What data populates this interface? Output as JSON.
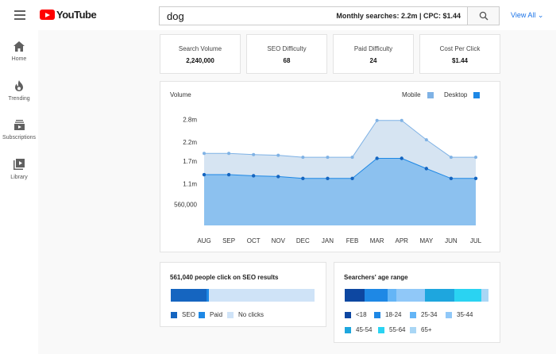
{
  "app": {
    "brand": "YouTube"
  },
  "search": {
    "query": "dog",
    "stats_prefix": "Monthly searches: 2.2m | CPC: $1.44",
    "view_all": "View All"
  },
  "sidebar": {
    "items": [
      {
        "label": "Home",
        "icon": "home-icon"
      },
      {
        "label": "Trending",
        "icon": "flame-icon"
      },
      {
        "label": "Subscriptions",
        "icon": "subscriptions-icon"
      },
      {
        "label": "Library",
        "icon": "library-icon"
      }
    ]
  },
  "stats": [
    {
      "label": "Search Volume",
      "value": "2,240,000"
    },
    {
      "label": "SEO Difficulty",
      "value": "68"
    },
    {
      "label": "Paid Difficulty",
      "value": "24"
    },
    {
      "label": "Cost Per Click",
      "value": "$1.44"
    }
  ],
  "colors": {
    "mobile": "#7fb2e5",
    "desktop": "#1e88e5",
    "mobile_area": "#d6e4f2",
    "desktop_area": "#8cc1ef"
  },
  "chart_data": {
    "type": "area",
    "title": "Volume",
    "categories": [
      "AUG",
      "SEP",
      "OCT",
      "NOV",
      "DEC",
      "JAN",
      "FEB",
      "MAR",
      "APR",
      "MAY",
      "JUN",
      "JUL"
    ],
    "y_ticks": [
      "2.8m",
      "2.2m",
      "1.7m",
      "1.1m",
      "560,000"
    ],
    "y_tick_values": [
      2800000,
      2200000,
      1700000,
      1100000,
      560000
    ],
    "ylim": [
      0,
      3100000
    ],
    "stacked": true,
    "series": [
      {
        "name": "Desktop",
        "values": [
          1340000,
          1340000,
          1310000,
          1290000,
          1240000,
          1240000,
          1240000,
          1770000,
          1770000,
          1500000,
          1240000,
          1240000
        ]
      },
      {
        "name": "Mobile",
        "values": [
          560000,
          560000,
          560000,
          560000,
          560000,
          560000,
          560000,
          1000000,
          1000000,
          760000,
          560000,
          560000
        ]
      }
    ],
    "legend": "top-right",
    "grid": false
  },
  "seo_clicks": {
    "title": "561,040 people click on SEO results",
    "segments": [
      {
        "name": "SEO",
        "fraction": 0.25,
        "color": "#1565c0"
      },
      {
        "name": "Paid",
        "fraction": 0.015,
        "color": "#1e88e5"
      },
      {
        "name": "No clicks",
        "fraction": 0.735,
        "color": "#cfe3f7"
      }
    ]
  },
  "age_range": {
    "title": "Searchers' age range",
    "segments": [
      {
        "name": "<18",
        "fraction": 0.14,
        "color": "#0d47a1"
      },
      {
        "name": "18-24",
        "fraction": 0.16,
        "color": "#1e88e5"
      },
      {
        "name": "25-34",
        "fraction": 0.06,
        "color": "#64b5f6"
      },
      {
        "name": "35-44",
        "fraction": 0.2,
        "color": "#90c8f8"
      },
      {
        "name": "45-54",
        "fraction": 0.2,
        "color": "#1ea6de"
      },
      {
        "name": "55-64",
        "fraction": 0.19,
        "color": "#2ad3f2"
      },
      {
        "name": "65+",
        "fraction": 0.05,
        "color": "#a9d6f5"
      }
    ]
  }
}
